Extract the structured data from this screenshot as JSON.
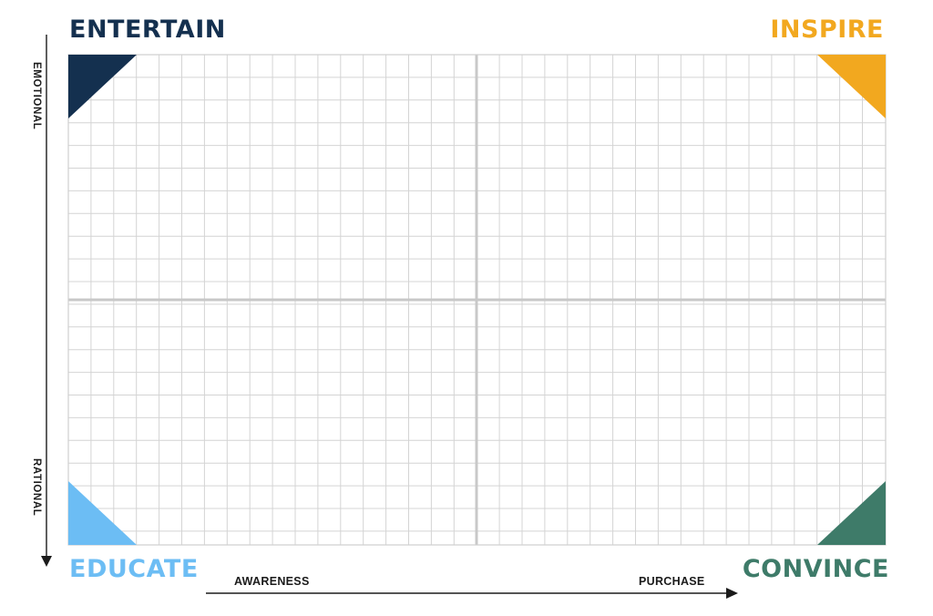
{
  "quadrants": {
    "top_left": {
      "label": "ENTERTAIN",
      "color": "#14304f"
    },
    "top_right": {
      "label": "INSPIRE",
      "color": "#f2a81f"
    },
    "bottom_left": {
      "label": "EDUCATE",
      "color": "#6cbdf4"
    },
    "bottom_right": {
      "label": "CONVINCE",
      "color": "#3e7b69"
    }
  },
  "axes": {
    "vertical": {
      "top_label": "EMOTIONAL",
      "bottom_label": "RATIONAL"
    },
    "horizontal": {
      "start_label": "AWARENESS",
      "end_label": "PURCHASE"
    }
  },
  "grid": {
    "line_color": "#d4d4d4",
    "divider_color": "#c8c8c8"
  }
}
